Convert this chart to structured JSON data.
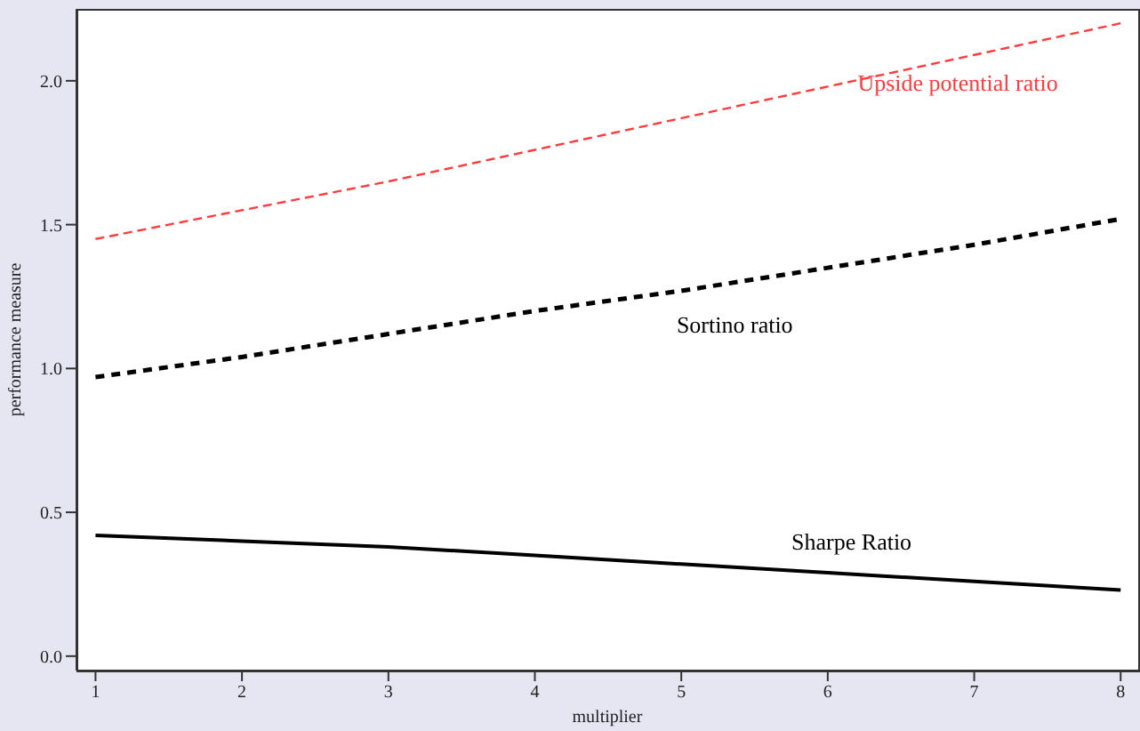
{
  "chart_data": {
    "type": "line",
    "xlabel": "multiplier",
    "ylabel": "performance measure",
    "x": [
      1,
      2,
      3,
      4,
      5,
      6,
      7,
      8
    ],
    "xlim": [
      0.87,
      8.12
    ],
    "xticks": [
      1,
      2,
      3,
      4,
      5,
      6,
      7,
      8
    ],
    "ylim": [
      -0.05,
      2.25
    ],
    "yticks": [
      {
        "value": 0,
        "label": "0.0"
      },
      {
        "value": 0.5,
        "label": "0.5"
      },
      {
        "value": 1,
        "label": "1.0"
      },
      {
        "value": 1.5,
        "label": "1.5"
      },
      {
        "value": 2,
        "label": "2.0"
      }
    ],
    "grid": false,
    "legend": false,
    "marker": "none",
    "series": [
      {
        "name": "Upside potential ratio",
        "color": "#ff3b3b",
        "line_style": "dashed",
        "values": [
          1.45,
          1.55,
          1.65,
          1.76,
          1.87,
          1.98,
          2.09,
          2.2
        ]
      },
      {
        "name": "Sortino ratio",
        "color": "#000000",
        "line_style": "dotted",
        "values": [
          0.97,
          1.04,
          1.12,
          1.2,
          1.27,
          1.35,
          1.43,
          1.52
        ]
      },
      {
        "name": "Sharpe Ratio",
        "color": "#000000",
        "line_style": "solid",
        "values": [
          0.42,
          0.4,
          0.38,
          0.35,
          0.32,
          0.29,
          0.26,
          0.23
        ]
      }
    ]
  }
}
